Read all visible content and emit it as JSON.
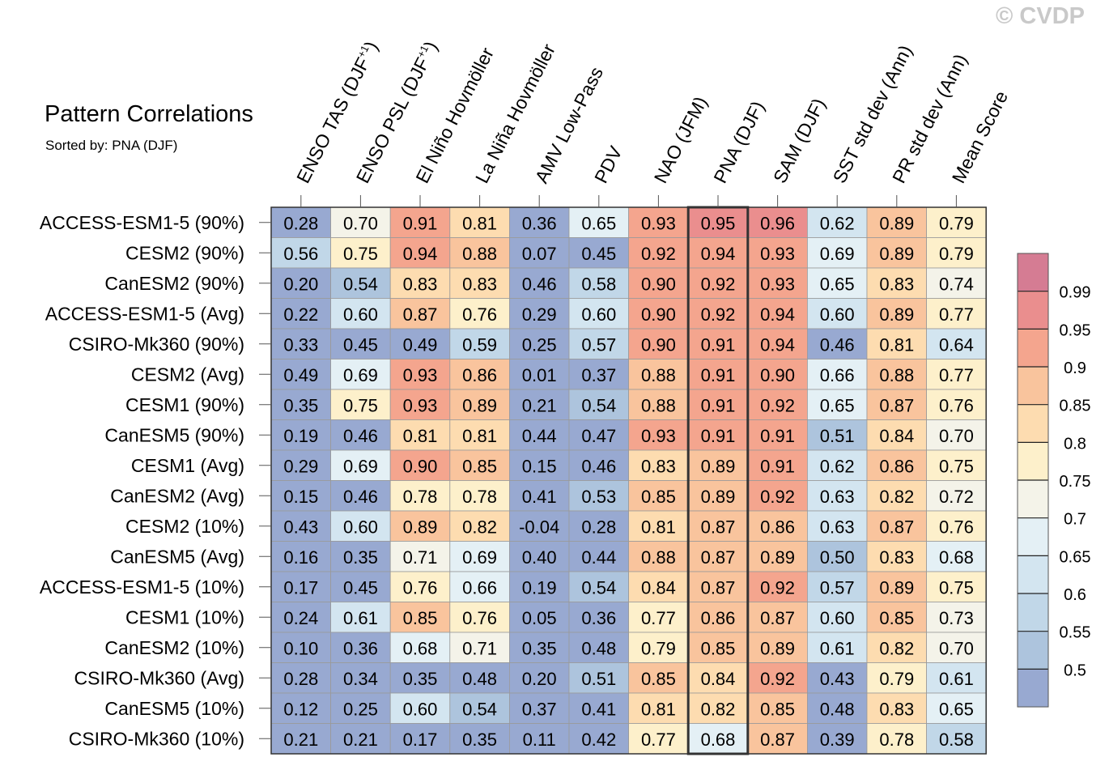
{
  "watermark": "© CVDP",
  "chart_data": {
    "type": "heatmap",
    "title": "Pattern Correlations",
    "subtitle": "Sorted by: PNA (DJF)",
    "highlighted_column": "PNA (DJF)",
    "columns": [
      {
        "main": "ENSO TAS (DJF",
        "sup": "+1",
        "tail": ")"
      },
      {
        "main": "ENSO PSL (DJF",
        "sup": "+1",
        "tail": ")"
      },
      {
        "main": "El Niño Hovmöller"
      },
      {
        "main": "La Niña Hovmöller"
      },
      {
        "main": "AMV Low-Pass"
      },
      {
        "main": "PDV"
      },
      {
        "main": "NAO (JFM)"
      },
      {
        "main": "PNA (DJF)"
      },
      {
        "main": "SAM (DJF)"
      },
      {
        "main": "SST std dev (Ann)"
      },
      {
        "main": "PR std dev (Ann)"
      },
      {
        "main": "Mean Score"
      }
    ],
    "rows": [
      {
        "name": "ACCESS-ESM1-5 (90%)",
        "values": [
          "0.28",
          "0.70",
          "0.91",
          "0.81",
          "0.36",
          "0.65",
          "0.93",
          "0.95",
          "0.96",
          "0.62",
          "0.89",
          "0.79"
        ]
      },
      {
        "name": "CESM2 (90%)",
        "values": [
          "0.56",
          "0.75",
          "0.94",
          "0.88",
          "0.07",
          "0.45",
          "0.92",
          "0.94",
          "0.93",
          "0.69",
          "0.89",
          "0.79"
        ]
      },
      {
        "name": "CanESM2 (90%)",
        "values": [
          "0.20",
          "0.54",
          "0.83",
          "0.83",
          "0.46",
          "0.58",
          "0.90",
          "0.92",
          "0.93",
          "0.65",
          "0.83",
          "0.74"
        ]
      },
      {
        "name": "ACCESS-ESM1-5 (Avg)",
        "values": [
          "0.22",
          "0.60",
          "0.87",
          "0.76",
          "0.29",
          "0.60",
          "0.90",
          "0.92",
          "0.94",
          "0.60",
          "0.89",
          "0.77"
        ]
      },
      {
        "name": "CSIRO-Mk360 (90%)",
        "values": [
          "0.33",
          "0.45",
          "0.49",
          "0.59",
          "0.25",
          "0.57",
          "0.90",
          "0.91",
          "0.94",
          "0.46",
          "0.81",
          "0.64"
        ]
      },
      {
        "name": "CESM2 (Avg)",
        "values": [
          "0.49",
          "0.69",
          "0.93",
          "0.86",
          "0.01",
          "0.37",
          "0.88",
          "0.91",
          "0.90",
          "0.66",
          "0.88",
          "0.77"
        ]
      },
      {
        "name": "CESM1 (90%)",
        "values": [
          "0.35",
          "0.75",
          "0.93",
          "0.89",
          "0.21",
          "0.54",
          "0.88",
          "0.91",
          "0.92",
          "0.65",
          "0.87",
          "0.76"
        ]
      },
      {
        "name": "CanESM5 (90%)",
        "values": [
          "0.19",
          "0.46",
          "0.81",
          "0.81",
          "0.44",
          "0.47",
          "0.93",
          "0.91",
          "0.91",
          "0.51",
          "0.84",
          "0.70"
        ]
      },
      {
        "name": "CESM1 (Avg)",
        "values": [
          "0.29",
          "0.69",
          "0.90",
          "0.85",
          "0.15",
          "0.46",
          "0.83",
          "0.89",
          "0.91",
          "0.62",
          "0.86",
          "0.75"
        ]
      },
      {
        "name": "CanESM2 (Avg)",
        "values": [
          "0.15",
          "0.46",
          "0.78",
          "0.78",
          "0.41",
          "0.53",
          "0.85",
          "0.89",
          "0.92",
          "0.63",
          "0.82",
          "0.72"
        ]
      },
      {
        "name": "CESM2 (10%)",
        "values": [
          "0.43",
          "0.60",
          "0.89",
          "0.82",
          "-0.04",
          "0.28",
          "0.81",
          "0.87",
          "0.86",
          "0.63",
          "0.87",
          "0.76"
        ]
      },
      {
        "name": "CanESM5 (Avg)",
        "values": [
          "0.16",
          "0.35",
          "0.71",
          "0.69",
          "0.40",
          "0.44",
          "0.88",
          "0.87",
          "0.89",
          "0.50",
          "0.83",
          "0.68"
        ]
      },
      {
        "name": "ACCESS-ESM1-5 (10%)",
        "values": [
          "0.17",
          "0.45",
          "0.76",
          "0.66",
          "0.19",
          "0.54",
          "0.84",
          "0.87",
          "0.92",
          "0.57",
          "0.89",
          "0.75"
        ]
      },
      {
        "name": "CESM1 (10%)",
        "values": [
          "0.24",
          "0.61",
          "0.85",
          "0.76",
          "0.05",
          "0.36",
          "0.77",
          "0.86",
          "0.87",
          "0.60",
          "0.85",
          "0.73"
        ]
      },
      {
        "name": "CanESM2 (10%)",
        "values": [
          "0.10",
          "0.36",
          "0.68",
          "0.71",
          "0.35",
          "0.48",
          "0.79",
          "0.85",
          "0.89",
          "0.61",
          "0.82",
          "0.70"
        ]
      },
      {
        "name": "CSIRO-Mk360 (Avg)",
        "values": [
          "0.28",
          "0.34",
          "0.35",
          "0.48",
          "0.20",
          "0.51",
          "0.85",
          "0.84",
          "0.92",
          "0.43",
          "0.79",
          "0.61"
        ]
      },
      {
        "name": "CanESM5 (10%)",
        "values": [
          "0.12",
          "0.25",
          "0.60",
          "0.54",
          "0.37",
          "0.41",
          "0.81",
          "0.82",
          "0.85",
          "0.48",
          "0.83",
          "0.65"
        ]
      },
      {
        "name": "CSIRO-Mk360 (10%)",
        "values": [
          "0.21",
          "0.21",
          "0.17",
          "0.35",
          "0.11",
          "0.42",
          "0.77",
          "0.68",
          "0.87",
          "0.39",
          "0.78",
          "0.58"
        ]
      }
    ],
    "colorbar": {
      "levels": [
        0.5,
        0.55,
        0.6,
        0.65,
        0.7,
        0.75,
        0.8,
        0.85,
        0.9,
        0.95,
        0.99
      ],
      "labels": [
        "0.5",
        "0.55",
        "0.6",
        "0.65",
        "0.7",
        "0.75",
        "0.8",
        "0.85",
        "0.9",
        "0.95",
        "0.99"
      ],
      "colors": [
        "#98a9d1",
        "#adc4dd",
        "#c1d7e8",
        "#d3e5f0",
        "#e4f0f5",
        "#f4f3e9",
        "#fdf0cb",
        "#fddcb0",
        "#f9c49d",
        "#f4a58e",
        "#ea8e8e",
        "#d57c93"
      ]
    }
  }
}
